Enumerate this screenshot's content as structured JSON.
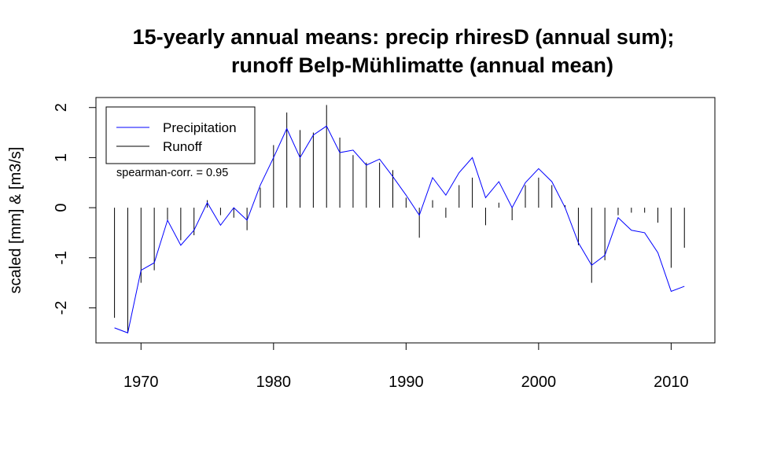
{
  "chart_data": {
    "type": "line",
    "title_line1": "15-yearly annual means: precip rhiresD (annual sum);",
    "title_line2": "runoff Belp-Mühlimatte (annual mean)",
    "xlabel": "",
    "ylabel": "scaled [mm] & [m3/s]",
    "xlim": [
      1966.6,
      2013.3
    ],
    "ylim": [
      -2.7,
      2.2
    ],
    "x_ticks": [
      1970,
      1980,
      1990,
      2000,
      2010
    ],
    "y_ticks": [
      -2,
      -1,
      0,
      1,
      2
    ],
    "grid": false,
    "legend_position": "top-left",
    "annotation": "spearman-corr. = 0.95",
    "x": [
      1968,
      1969,
      1970,
      1971,
      1972,
      1973,
      1974,
      1975,
      1976,
      1977,
      1978,
      1979,
      1980,
      1981,
      1982,
      1983,
      1984,
      1985,
      1986,
      1987,
      1988,
      1989,
      1990,
      1991,
      1992,
      1993,
      1994,
      1995,
      1996,
      1997,
      1998,
      1999,
      2000,
      2001,
      2002,
      2003,
      2004,
      2005,
      2006,
      2007,
      2008,
      2009,
      2010,
      2011
    ],
    "series": [
      {
        "name": "Precipitation",
        "style": "line",
        "color": "#0000ff",
        "values": [
          -2.4,
          -2.5,
          -1.25,
          -1.1,
          -0.25,
          -0.75,
          -0.45,
          0.1,
          -0.35,
          0.0,
          -0.25,
          0.45,
          1.0,
          1.58,
          1.0,
          1.45,
          1.63,
          1.1,
          1.15,
          0.85,
          0.97,
          0.62,
          0.25,
          -0.15,
          0.6,
          0.25,
          0.7,
          1.0,
          0.2,
          0.52,
          0.0,
          0.5,
          0.78,
          0.52,
          0.0,
          -0.7,
          -1.15,
          -0.95,
          -0.2,
          -0.45,
          -0.5,
          -0.9,
          -1.67,
          -1.57
        ]
      },
      {
        "name": "Runoff",
        "style": "histogram",
        "color": "#000000",
        "values": [
          -2.2,
          -2.5,
          -1.5,
          -1.25,
          -0.25,
          -0.65,
          -0.55,
          0.15,
          -0.15,
          -0.2,
          -0.45,
          0.4,
          1.25,
          1.9,
          1.55,
          1.5,
          2.05,
          1.4,
          1.05,
          0.9,
          0.9,
          0.75,
          0.2,
          -0.6,
          0.15,
          -0.2,
          0.45,
          0.6,
          -0.35,
          0.1,
          -0.25,
          0.45,
          0.6,
          0.45,
          0.05,
          -0.75,
          -1.5,
          -1.05,
          -0.15,
          -0.1,
          -0.1,
          -0.3,
          -1.2,
          -0.8
        ]
      }
    ]
  }
}
